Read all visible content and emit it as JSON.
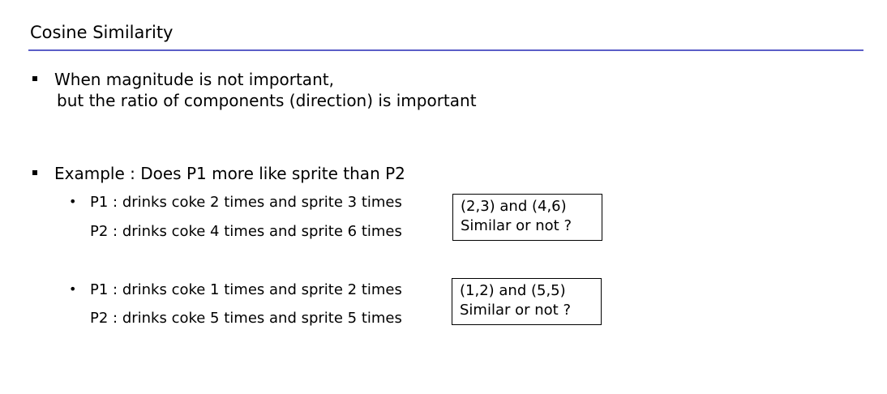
{
  "slide": {
    "title": "Cosine Similarity",
    "accent_color": "#5b5fc7",
    "bullets": [
      {
        "line1": "When magnitude is not important,",
        "line2": "but the ratio of components (direction) is important"
      },
      {
        "line1": "Example : Does P1 more like sprite than P2"
      }
    ],
    "examples": [
      {
        "p1": "P1 : drinks coke 2 times and sprite 3 times",
        "p2": "P2 : drinks coke 4 times and sprite 6 times",
        "box_line1": "(2,3) and (4,6)",
        "box_line2": "Similar or not ?"
      },
      {
        "p1": "P1 : drinks coke 1 times and sprite 2 times",
        "p2": "P2 : drinks coke 5 times and sprite 5 times",
        "box_line1": "(1,2) and (5,5)",
        "box_line2": "Similar or not ?"
      }
    ],
    "sub_bullet_glyph": "•"
  }
}
